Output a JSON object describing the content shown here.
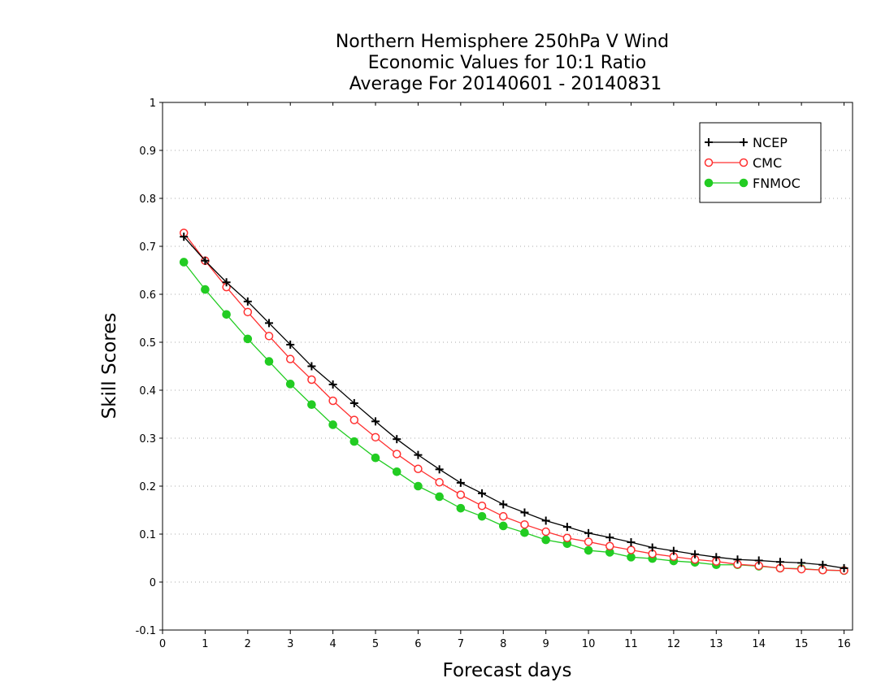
{
  "chart_data": {
    "type": "line",
    "title_lines": [
      "Northern Hemisphere 250hPa V Wind",
      "Economic Values for 10:1 Ratio",
      "Average For 20140601 - 20140831"
    ],
    "xlabel": "Forecast days",
    "ylabel": "Skill Scores",
    "xlim": [
      0,
      16.2
    ],
    "ylim": [
      -0.1,
      1
    ],
    "xticks": [
      0,
      1,
      2,
      3,
      4,
      5,
      6,
      7,
      8,
      9,
      10,
      11,
      12,
      13,
      14,
      15,
      16
    ],
    "yticks": [
      -0.1,
      0,
      0.1,
      0.2,
      0.3,
      0.4,
      0.5,
      0.6,
      0.7,
      0.8,
      0.9,
      1
    ],
    "ytick_labels": [
      "-0.1",
      "0",
      "0.1",
      "0.2",
      "0.3",
      "0.4",
      "0.5",
      "0.6",
      "0.7",
      "0.8",
      "0.9",
      "1"
    ],
    "grid": "horizontal dotted",
    "legend_position": "top-right",
    "x": [
      0.5,
      1,
      1.5,
      2,
      2.5,
      3,
      3.5,
      4,
      4.5,
      5,
      5.5,
      6,
      6.5,
      7,
      7.5,
      8,
      8.5,
      9,
      9.5,
      10,
      10.5,
      11,
      11.5,
      12,
      12.5,
      13,
      13.5,
      14,
      14.5,
      15,
      15.5,
      16
    ],
    "series": [
      {
        "name": "NCEP",
        "color": "#000000",
        "marker": "plus",
        "values": [
          0.72,
          0.67,
          0.625,
          0.585,
          0.54,
          0.495,
          0.45,
          0.412,
          0.373,
          0.335,
          0.298,
          0.265,
          0.235,
          0.207,
          0.185,
          0.162,
          0.145,
          0.128,
          0.115,
          0.102,
          0.093,
          0.083,
          0.072,
          0.065,
          0.058,
          0.052,
          0.047,
          0.045,
          0.042,
          0.04,
          0.036,
          0.029
        ]
      },
      {
        "name": "CMC",
        "color": "#ff3030",
        "marker": "open-circle",
        "values": [
          0.728,
          0.67,
          0.615,
          0.563,
          0.513,
          0.465,
          0.422,
          0.378,
          0.338,
          0.302,
          0.267,
          0.236,
          0.208,
          0.182,
          0.159,
          0.137,
          0.12,
          0.105,
          0.092,
          0.084,
          0.075,
          0.067,
          0.059,
          0.053,
          0.047,
          0.043,
          0.037,
          0.034,
          0.029,
          0.027,
          0.025,
          0.024
        ]
      },
      {
        "name": "FNMOC",
        "color": "#22cc22",
        "marker": "filled-circle",
        "values": [
          0.667,
          0.61,
          0.558,
          0.507,
          0.46,
          0.413,
          0.37,
          0.328,
          0.293,
          0.259,
          0.23,
          0.2,
          0.178,
          0.154,
          0.137,
          0.117,
          0.103,
          0.088,
          0.08,
          0.066,
          0.062,
          0.052,
          0.049,
          0.044,
          0.041,
          0.036,
          0.036,
          0.033,
          0.029,
          0.028,
          0.025,
          0.024
        ]
      }
    ]
  }
}
